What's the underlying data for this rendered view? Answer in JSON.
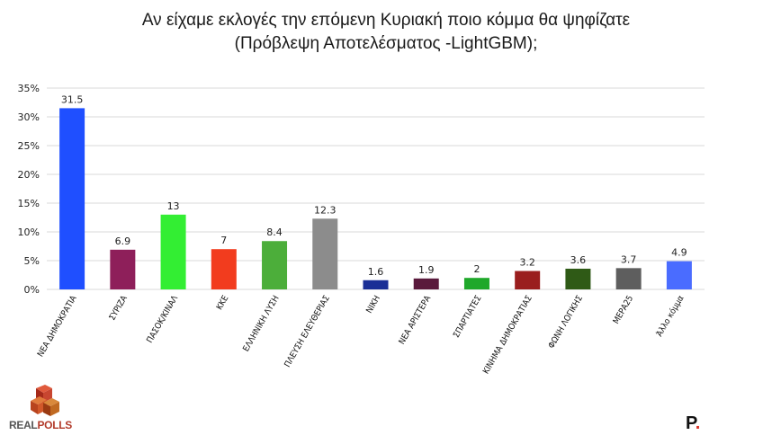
{
  "title": {
    "line1": "Αν είχαμε εκλογές την επόμενη Κυριακή ποιο κόμμα θα ψηφίζατε",
    "line2": "(Πρόβλεψη Αποτελέσματος -LightGBM);"
  },
  "brand": {
    "logo_text_1": "REAL",
    "logo_text_2": "POLLS",
    "mark": "P",
    "mark_dot": "."
  },
  "chart_data": {
    "type": "bar",
    "categories": [
      "ΝΕΑ ΔΗΜΟΚΡΑΤΙΑ",
      "ΣΥΡΙΖΑ",
      "ΠΑΣΟΚ/ΚΙΝΑΛ",
      "ΚΚΕ",
      "ΕΛΛΗΝΙΚΗ ΛΥΣΗ",
      "ΠΛΕΥΣΗ ΕΛΕΥΘΕΡΙΑΣ",
      "ΝΙΚΗ",
      "ΝΕΑ ΑΡΙΣΤΕΡΑ",
      "ΣΠΑΡΤΙΑΤΕΣ",
      "ΚΙΝΗΜΑ ΔΗΜΟΚΡΑΤΙΑΣ",
      "ΦΩΝΗ ΛΟΓΙΚΗΣ",
      "ΜΕΡΑ25",
      "Άλλο κόμμα"
    ],
    "values": [
      31.5,
      6.9,
      13,
      7,
      8.4,
      12.3,
      1.6,
      1.9,
      2,
      3.2,
      3.6,
      3.7,
      4.9
    ],
    "value_labels": [
      "31.5",
      "6.9",
      "13",
      "7",
      "8.4",
      "12.3",
      "1.6",
      "1.9",
      "2",
      "3.2",
      "3.6",
      "3.7",
      "4.9"
    ],
    "colors": [
      "#1f4fff",
      "#8e1f5a",
      "#33ee33",
      "#f23c1e",
      "#4cae3a",
      "#8c8c8c",
      "#1a2f96",
      "#5a1a3c",
      "#1fa82a",
      "#9a1e1e",
      "#2f5a16",
      "#5e5e5e",
      "#4a6cff"
    ],
    "ylim": [
      0,
      35
    ],
    "yticks": [
      0,
      5,
      10,
      15,
      20,
      25,
      30,
      35
    ],
    "ytick_labels": [
      "0%",
      "5%",
      "10%",
      "15%",
      "20%",
      "25%",
      "30%",
      "35%"
    ],
    "grid": true,
    "xlabel": "",
    "ylabel": ""
  }
}
